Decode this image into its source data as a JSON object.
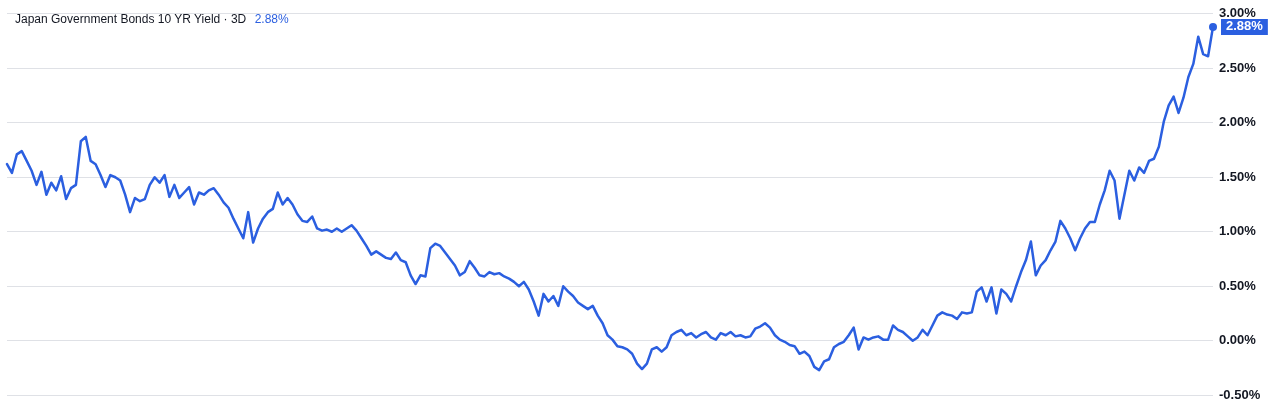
{
  "chart_data": {
    "type": "line",
    "title": "Japan Government Bonds 10 YR Yield · 3D",
    "subtitle": "2.88%",
    "categories": [
      null,
      null,
      null,
      null,
      null,
      null,
      null,
      null,
      null,
      null,
      null,
      null,
      null,
      null,
      null,
      null,
      null,
      null,
      null,
      null,
      null,
      null,
      null,
      null,
      null,
      null,
      null,
      null,
      null,
      null,
      null,
      null,
      null,
      null,
      null,
      null,
      null,
      null,
      null,
      null,
      null,
      null,
      null,
      null,
      null,
      null,
      null,
      null,
      null,
      null,
      null,
      null,
      null,
      null,
      null,
      null,
      null,
      null,
      null,
      null,
      null,
      null,
      null,
      null,
      null,
      null,
      null,
      null,
      null,
      null,
      null,
      null,
      null,
      null,
      null,
      null,
      null,
      null,
      null,
      null,
      null,
      null,
      null,
      null,
      null,
      null,
      null,
      null,
      null,
      null,
      null,
      null,
      null,
      null,
      null,
      null,
      null,
      null,
      null,
      null,
      null,
      null,
      null,
      null,
      null,
      null,
      null,
      null,
      null,
      null,
      null,
      null,
      null,
      null,
      null,
      null,
      null,
      null,
      null,
      null,
      null,
      null,
      null,
      null,
      null,
      null,
      null,
      null,
      null,
      null,
      null,
      null,
      null,
      null,
      null,
      null,
      null,
      null,
      null,
      null,
      null,
      null,
      null,
      null,
      null,
      null,
      null,
      null,
      null,
      null,
      null,
      null,
      null,
      null,
      null,
      null,
      null,
      null,
      null,
      null,
      null,
      null,
      null,
      null,
      null,
      null,
      null,
      null,
      null,
      null,
      null,
      null,
      null,
      null,
      null,
      null,
      null,
      null,
      null,
      null,
      null,
      null,
      null,
      null,
      null,
      null,
      null,
      null,
      null,
      null,
      null,
      null,
      null,
      null,
      null,
      null,
      null,
      null,
      null,
      null,
      null,
      null,
      null,
      null,
      null,
      null,
      null,
      null,
      null,
      null,
      null,
      null,
      null,
      null,
      null,
      null,
      null,
      null,
      null,
      null,
      null,
      null,
      null,
      null,
      null,
      null,
      null,
      null,
      null,
      null,
      null,
      null,
      null,
      null,
      null,
      null,
      null,
      null,
      null,
      null,
      null,
      null,
      null,
      null,
      null,
      null
    ],
    "series": [
      {
        "color": "#2b5fe0",
        "values": [
          1.62,
          1.54,
          1.71,
          1.74,
          1.65,
          1.56,
          1.43,
          1.55,
          1.34,
          1.45,
          1.38,
          1.51,
          1.3,
          1.4,
          1.43,
          1.83,
          1.87,
          1.65,
          1.62,
          1.52,
          1.41,
          1.52,
          1.5,
          1.47,
          1.34,
          1.18,
          1.31,
          1.28,
          1.3,
          1.43,
          1.5,
          1.45,
          1.52,
          1.32,
          1.43,
          1.31,
          1.36,
          1.41,
          1.25,
          1.36,
          1.34,
          1.38,
          1.4,
          1.34,
          1.27,
          1.22,
          1.12,
          1.03,
          0.94,
          1.18,
          0.9,
          1.03,
          1.12,
          1.18,
          1.21,
          1.36,
          1.25,
          1.31,
          1.25,
          1.16,
          1.1,
          1.09,
          1.14,
          1.03,
          1.01,
          1.02,
          1.0,
          1.03,
          1.0,
          1.03,
          1.06,
          1.01,
          0.94,
          0.87,
          0.79,
          0.82,
          0.79,
          0.76,
          0.75,
          0.81,
          0.74,
          0.72,
          0.6,
          0.52,
          0.6,
          0.59,
          0.85,
          0.89,
          0.87,
          0.81,
          0.75,
          0.69,
          0.6,
          0.63,
          0.73,
          0.67,
          0.6,
          0.59,
          0.63,
          0.61,
          0.62,
          0.59,
          0.57,
          0.54,
          0.5,
          0.54,
          0.47,
          0.36,
          0.23,
          0.43,
          0.36,
          0.41,
          0.32,
          0.5,
          0.45,
          0.41,
          0.35,
          0.32,
          0.29,
          0.32,
          0.23,
          0.16,
          0.05,
          0.01,
          -0.05,
          -0.06,
          -0.08,
          -0.12,
          -0.21,
          -0.26,
          -0.21,
          -0.08,
          -0.06,
          -0.1,
          -0.06,
          0.05,
          0.08,
          0.1,
          0.05,
          0.07,
          0.03,
          0.06,
          0.08,
          0.03,
          0.01,
          0.07,
          0.05,
          0.08,
          0.04,
          0.05,
          0.03,
          0.04,
          0.11,
          0.13,
          0.16,
          0.12,
          0.05,
          0.01,
          -0.01,
          -0.04,
          -0.05,
          -0.12,
          -0.1,
          -0.14,
          -0.24,
          -0.27,
          -0.19,
          -0.17,
          -0.06,
          -0.03,
          -0.01,
          0.05,
          0.12,
          -0.08,
          0.03,
          0.01,
          0.03,
          0.04,
          0.01,
          0.01,
          0.14,
          0.1,
          0.08,
          0.04,
          0.0,
          0.03,
          0.1,
          0.05,
          0.14,
          0.23,
          0.26,
          0.24,
          0.23,
          0.2,
          0.26,
          0.25,
          0.26,
          0.45,
          0.49,
          0.36,
          0.49,
          0.25,
          0.47,
          0.43,
          0.36,
          0.5,
          0.63,
          0.74,
          0.91,
          0.6,
          0.69,
          0.74,
          0.83,
          0.91,
          1.1,
          1.03,
          0.94,
          0.83,
          0.94,
          1.03,
          1.09,
          1.09,
          1.25,
          1.38,
          1.56,
          1.47,
          1.12,
          1.34,
          1.56,
          1.47,
          1.59,
          1.54,
          1.65,
          1.67,
          1.78,
          2.01,
          2.16,
          2.24,
          2.09,
          2.23,
          2.42,
          2.54,
          2.79,
          2.63,
          2.61,
          2.88
        ],
        "value_labels": [
          null,
          null,
          null,
          null,
          null,
          null,
          null,
          null,
          null,
          null,
          null,
          null,
          null,
          null,
          null,
          null,
          null,
          null,
          null,
          null,
          null,
          null,
          null,
          null,
          null,
          null,
          null,
          null,
          null,
          null,
          null,
          null,
          null,
          null,
          null,
          null,
          null,
          null,
          null,
          null,
          null,
          null,
          null,
          null,
          null,
          null,
          null,
          null,
          null,
          null,
          null,
          null,
          null,
          null,
          null,
          null,
          null,
          null,
          null,
          null,
          null,
          null,
          null,
          null,
          null,
          null,
          null,
          null,
          null,
          null,
          null,
          null,
          null,
          null,
          null,
          null,
          null,
          null,
          null,
          null,
          null,
          null,
          null,
          null,
          null,
          null,
          null,
          null,
          null,
          null,
          null,
          null,
          null,
          null,
          null,
          null,
          null,
          null,
          null,
          null,
          null,
          null,
          null,
          null,
          null,
          null,
          null,
          null,
          null,
          null,
          null,
          null,
          null,
          null,
          null,
          null,
          null,
          null,
          null,
          null,
          null,
          null,
          null,
          null,
          null,
          null,
          null,
          null,
          null,
          null,
          null,
          null,
          null,
          null,
          null,
          null,
          null,
          null,
          null,
          null,
          null,
          null,
          null,
          null,
          null,
          null,
          null,
          null,
          null,
          null,
          null,
          null,
          null,
          null,
          null,
          null,
          null,
          null,
          null,
          null,
          null,
          null,
          null,
          null,
          null,
          null,
          null,
          null,
          null,
          null,
          null,
          null,
          null,
          null,
          null,
          null,
          null,
          null,
          null,
          null,
          null,
          null,
          null,
          null,
          null,
          null,
          null,
          null,
          null,
          null,
          null,
          null,
          null,
          null,
          null,
          null,
          null,
          null,
          null,
          null,
          null,
          null,
          null,
          null,
          null,
          null,
          null,
          null,
          null,
          null,
          null,
          null,
          null,
          null,
          null,
          null,
          null,
          null,
          null,
          null,
          null,
          null,
          null,
          null,
          null,
          null,
          null,
          null,
          null,
          null,
          null,
          null,
          null,
          null,
          null,
          null,
          null,
          null,
          null,
          null,
          null,
          null,
          null,
          null,
          null,
          "2.88%"
        ]
      }
    ],
    "ylim": [
      -0.5,
      3.0
    ],
    "yticks": [
      {
        "value": -0.5,
        "label": "-0.50%"
      },
      {
        "value": 0,
        "label": "0.00%"
      },
      {
        "value": 0.5,
        "label": "0.50%"
      },
      {
        "value": 1,
        "label": "1.00%"
      },
      {
        "value": 1.5,
        "label": "1.50%"
      },
      {
        "value": 2,
        "label": "2.00%"
      },
      {
        "value": 2.5,
        "label": "2.50%"
      },
      {
        "value": 3,
        "label": "3.00%"
      }
    ],
    "grid": "y",
    "tick_labels": "y",
    "legend": false,
    "line_style": "solid"
  }
}
